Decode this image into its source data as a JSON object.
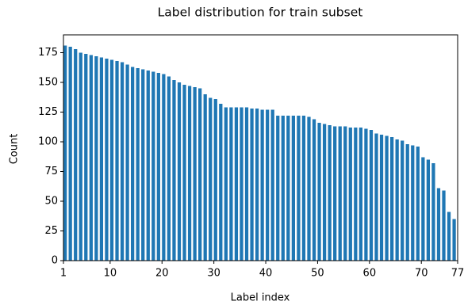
{
  "chart_data": {
    "type": "bar",
    "title": "Label distribution for train subset",
    "xlabel": "Label index",
    "ylabel": "Count",
    "x": [
      1,
      2,
      3,
      4,
      5,
      6,
      7,
      8,
      9,
      10,
      11,
      12,
      13,
      14,
      15,
      16,
      17,
      18,
      19,
      20,
      21,
      22,
      23,
      24,
      25,
      26,
      27,
      28,
      29,
      30,
      31,
      32,
      33,
      34,
      35,
      36,
      37,
      38,
      39,
      40,
      41,
      42,
      43,
      44,
      45,
      46,
      47,
      48,
      49,
      50,
      51,
      52,
      53,
      54,
      55,
      56,
      57,
      58,
      59,
      60,
      61,
      62,
      63,
      64,
      65,
      66,
      67,
      68,
      69,
      70,
      71,
      72,
      73,
      74,
      75,
      76
    ],
    "values": [
      181,
      180,
      178,
      175,
      174,
      173,
      172,
      171,
      170,
      169,
      168,
      167,
      165,
      163,
      162,
      161,
      160,
      159,
      158,
      157,
      155,
      152,
      150,
      148,
      147,
      146,
      145,
      140,
      137,
      136,
      132,
      129,
      129,
      129,
      129,
      129,
      128,
      128,
      127,
      127,
      127,
      122,
      122,
      122,
      122,
      122,
      122,
      121,
      119,
      116,
      115,
      114,
      113,
      113,
      113,
      112,
      112,
      112,
      111,
      110,
      107,
      106,
      105,
      104,
      102,
      101,
      98,
      97,
      96,
      87,
      85,
      82,
      61,
      59,
      41,
      35
    ],
    "color": "#1f77b4",
    "xlim": [
      1,
      77
    ],
    "xticks": [
      1,
      10,
      20,
      30,
      40,
      50,
      60,
      70,
      77
    ],
    "ylim": [
      0,
      190
    ],
    "yticks": [
      0,
      25,
      50,
      75,
      100,
      125,
      150,
      175
    ]
  }
}
